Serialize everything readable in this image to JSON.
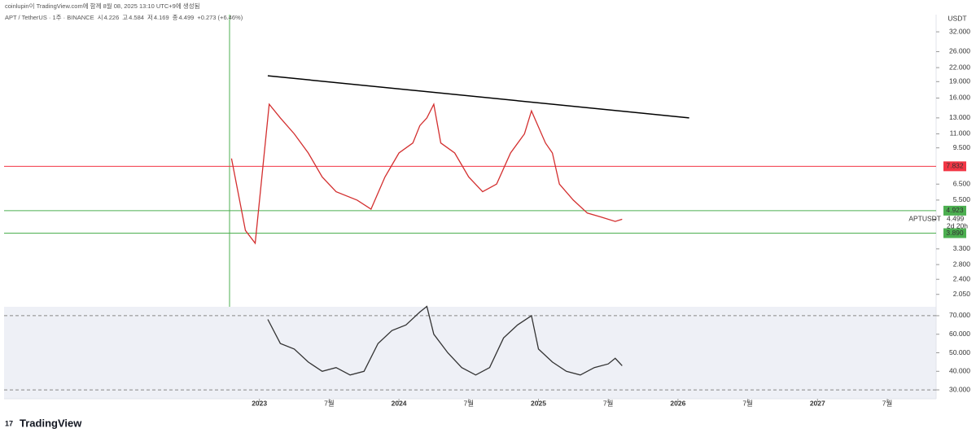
{
  "header": "coinlupin이 TradingView.com에 함께 8월 08, 2025 13:10 UTC+9에 생성됨",
  "legend": {
    "symbol": "APT / TetherUS · 1주 · BINANCE",
    "ohlc": [
      {
        "label": "시",
        "value": "4.226"
      },
      {
        "label": "고",
        "value": "4.584"
      },
      {
        "label": "저",
        "value": "4.169"
      },
      {
        "label": "종",
        "value": "4.499"
      }
    ],
    "change": "+0.273 (+6.46%)"
  },
  "currency": "USDT",
  "footer": "TradingView",
  "chart_data": [
    {
      "type": "line",
      "log_scale": true,
      "color": "#d32f2f",
      "x": [
        2022.8,
        2022.9,
        2022.97,
        2023.07,
        2023.15,
        2023.25,
        2023.35,
        2023.45,
        2023.55,
        2023.7,
        2023.8,
        2023.9,
        2024.0,
        2024.1,
        2024.15,
        2024.2,
        2024.25,
        2024.3,
        2024.4,
        2024.5,
        2024.6,
        2024.7,
        2024.8,
        2024.9,
        2024.95,
        2025.05,
        2025.1,
        2025.15,
        2025.25,
        2025.35,
        2025.45,
        2025.55,
        2025.6
      ],
      "values": [
        8.5,
        4.0,
        3.5,
        15,
        13,
        11,
        9,
        7,
        6,
        5.5,
        5,
        7,
        9,
        10,
        12,
        13,
        15,
        10,
        9,
        7,
        6,
        6.5,
        9,
        11,
        14,
        10,
        9,
        6.5,
        5.5,
        4.8,
        4.6,
        4.4,
        4.5
      ],
      "xlim": [
        2021.17,
        2027.85
      ],
      "ylim": [
        1.8,
        38.3
      ],
      "xticks": [
        {
          "value": 2023,
          "label": "2023"
        },
        {
          "value": 2023.5,
          "label": "7월"
        },
        {
          "value": 2024,
          "label": "2024"
        },
        {
          "value": 2024.5,
          "label": "7월"
        },
        {
          "value": 2025,
          "label": "2025"
        },
        {
          "value": 2025.5,
          "label": "7월"
        },
        {
          "value": 2026,
          "label": "2026"
        },
        {
          "value": 2026.5,
          "label": "7월"
        },
        {
          "value": 2027,
          "label": "2027"
        },
        {
          "value": 2027.5,
          "label": "7월"
        }
      ],
      "yticks": [
        {
          "value": 32,
          "label": "32.000"
        },
        {
          "value": 26,
          "label": "26.000"
        },
        {
          "value": 22,
          "label": "22.000"
        },
        {
          "value": 19,
          "label": "19.000"
        },
        {
          "value": 16,
          "label": "16.000"
        },
        {
          "value": 13,
          "label": "13.000"
        },
        {
          "value": 11,
          "label": "11.000"
        },
        {
          "value": 9.5,
          "label": "9.500"
        },
        {
          "value": 6.5,
          "label": "6.500"
        },
        {
          "value": 5.5,
          "label": "5.500"
        },
        {
          "value": 3.3,
          "label": "3.300"
        },
        {
          "value": 2.8,
          "label": "2.800"
        },
        {
          "value": 2.4,
          "label": "2.400"
        },
        {
          "value": 2.05,
          "label": "2.050"
        }
      ],
      "levels": [
        {
          "value": 7.832,
          "label": "7.832",
          "color": "#f23645"
        },
        {
          "value": 4.923,
          "label": "4.923",
          "color": "#4caf50"
        },
        {
          "value": 3.89,
          "label": "3.890",
          "color": "#4caf50"
        }
      ],
      "current": {
        "value": 4.499,
        "label": "4.499",
        "name": "APTUSDT",
        "countdown": "2d 20h"
      },
      "trendline": {
        "x": [
          2023.06,
          2026.08
        ],
        "y": [
          20.2,
          13.0
        ],
        "color": "#000000"
      }
    },
    {
      "type": "line",
      "color": "#333333",
      "x": [
        2023.06,
        2023.15,
        2023.25,
        2023.35,
        2023.45,
        2023.55,
        2023.65,
        2023.75,
        2023.85,
        2023.95,
        2024.05,
        2024.15,
        2024.2,
        2024.25,
        2024.35,
        2024.45,
        2024.55,
        2024.65,
        2024.75,
        2024.85,
        2024.95,
        2025.0,
        2025.1,
        2025.2,
        2025.3,
        2025.4,
        2025.5,
        2025.55,
        2025.6
      ],
      "values": [
        68,
        55,
        52,
        45,
        40,
        42,
        38,
        40,
        55,
        62,
        65,
        72,
        75,
        60,
        50,
        42,
        38,
        42,
        58,
        65,
        70,
        52,
        45,
        40,
        38,
        42,
        44,
        47,
        43
      ],
      "xlim": [
        2021.17,
        2027.85
      ],
      "ylim": [
        25.2,
        74.8
      ],
      "yticks": [
        {
          "value": 70,
          "label": "70.000"
        },
        {
          "value": 60,
          "label": "60.000"
        },
        {
          "value": 50,
          "label": "50.000"
        },
        {
          "value": 40,
          "label": "40.000"
        },
        {
          "value": 30,
          "label": "30.000"
        }
      ],
      "dashed_levels": [
        70,
        30
      ]
    }
  ]
}
